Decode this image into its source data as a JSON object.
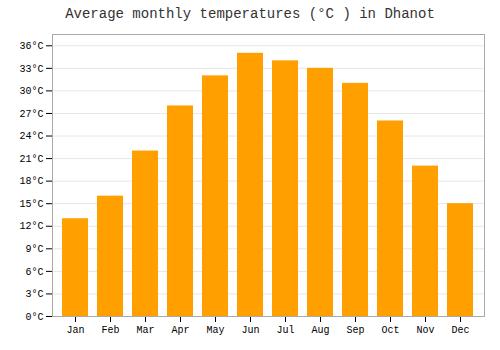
{
  "chart_data": {
    "type": "bar",
    "title": "Average monthly temperatures (°C ) in Dhanot",
    "categories": [
      "Jan",
      "Feb",
      "Mar",
      "Apr",
      "May",
      "Jun",
      "Jul",
      "Aug",
      "Sep",
      "Oct",
      "Nov",
      "Dec"
    ],
    "values": [
      13,
      16,
      22,
      28,
      32,
      35,
      34,
      33,
      31,
      26,
      20,
      15
    ],
    "color": "#FFA000",
    "ylim": [
      0,
      37.5
    ],
    "yticks": [
      {
        "value": 0,
        "label": "0°C"
      },
      {
        "value": 3,
        "label": "3°C"
      },
      {
        "value": 6,
        "label": "6°C"
      },
      {
        "value": 9,
        "label": "9°C"
      },
      {
        "value": 12,
        "label": "12°C"
      },
      {
        "value": 15,
        "label": "15°C"
      },
      {
        "value": 18,
        "label": "18°C"
      },
      {
        "value": 21,
        "label": "21°C"
      },
      {
        "value": 24,
        "label": "24°C"
      },
      {
        "value": 27,
        "label": "27°C"
      },
      {
        "value": 30,
        "label": "30°C"
      },
      {
        "value": 33,
        "label": "33°C"
      },
      {
        "value": 36,
        "label": "36°C"
      }
    ],
    "grid": true
  }
}
